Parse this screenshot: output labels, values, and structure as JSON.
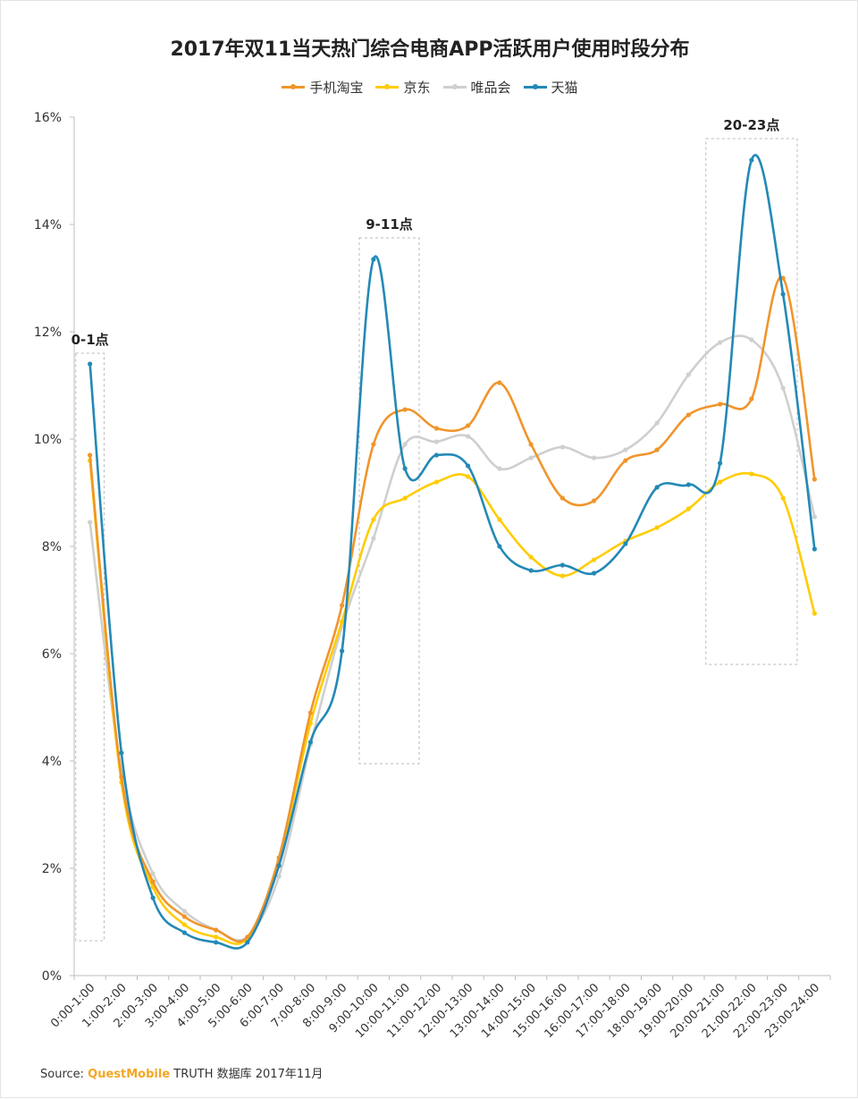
{
  "chart_data": {
    "type": "line",
    "title": "2017年双11当天热门综合电商APP活跃用户使用时段分布",
    "xlabel": "",
    "ylabel": "",
    "ylim": [
      0,
      16
    ],
    "yticks": [
      "0%",
      "2%",
      "4%",
      "6%",
      "8%",
      "10%",
      "12%",
      "14%",
      "16%"
    ],
    "grid": false,
    "legend": "top-center",
    "categories": [
      "0:00-1:00",
      "1:00-2:00",
      "2:00-3:00",
      "3:00-4:00",
      "4:00-5:00",
      "5:00-6:00",
      "6:00-7:00",
      "7:00-8:00",
      "8:00-9:00",
      "9:00-10:00",
      "10:00-11:00",
      "11:00-12:00",
      "12:00-13:00",
      "13:00-14:00",
      "14:00-15:00",
      "15:00-16:00",
      "16:00-17:00",
      "17:00-18:00",
      "18:00-19:00",
      "19:00-20:00",
      "20:00-21:00",
      "21:00-22:00",
      "22:00-23:00",
      "23:00-24:00"
    ],
    "series": [
      {
        "name": "手机淘宝",
        "color": "#f0952b",
        "values": [
          9.7,
          3.7,
          1.75,
          1.1,
          0.85,
          0.72,
          2.2,
          4.9,
          6.9,
          9.9,
          10.55,
          10.2,
          10.25,
          11.05,
          9.9,
          8.9,
          8.85,
          9.6,
          9.8,
          10.45,
          10.65,
          10.75,
          13.0,
          9.25
        ]
      },
      {
        "name": "京东",
        "color": "#ffcc00",
        "values": [
          9.6,
          3.6,
          1.65,
          0.95,
          0.72,
          0.7,
          2.15,
          4.7,
          6.6,
          8.5,
          8.9,
          9.2,
          9.3,
          8.5,
          7.8,
          7.45,
          7.75,
          8.1,
          8.35,
          8.7,
          9.2,
          9.35,
          8.9,
          6.75
        ]
      },
      {
        "name": "唯品会",
        "color": "#cfcfcf",
        "values": [
          8.45,
          3.8,
          1.9,
          1.2,
          0.85,
          0.72,
          1.85,
          4.3,
          6.5,
          8.15,
          9.9,
          9.95,
          10.05,
          9.45,
          9.65,
          9.85,
          9.65,
          9.8,
          10.3,
          11.2,
          11.8,
          11.85,
          10.95,
          8.55
        ]
      },
      {
        "name": "天猫",
        "color": "#2389b6",
        "values": [
          11.4,
          4.15,
          1.45,
          0.8,
          0.62,
          0.62,
          2.05,
          4.35,
          6.05,
          13.35,
          9.45,
          9.7,
          9.5,
          8.0,
          7.55,
          7.65,
          7.5,
          8.05,
          9.1,
          9.15,
          9.55,
          15.2,
          12.7,
          7.95
        ]
      }
    ],
    "annotations": [
      {
        "text": "0-1点",
        "x_from": "0:00-1:00",
        "x_to": "0:00-1:00",
        "y_from": 0.65,
        "y_to": 11.6
      },
      {
        "text": "9-11点",
        "x_from": "9:00-10:00",
        "x_to": "10:00-11:00",
        "y_from": 3.95,
        "y_to": 13.75
      },
      {
        "text": "20-23点",
        "x_from": "20:00-21:00",
        "x_to": "22:00-23:00",
        "y_from": 5.8,
        "y_to": 15.6
      }
    ]
  },
  "source": {
    "prefix": "Source:",
    "brand": "QuestMobile",
    "rest": "TRUTH 数据库 2017年11月"
  }
}
